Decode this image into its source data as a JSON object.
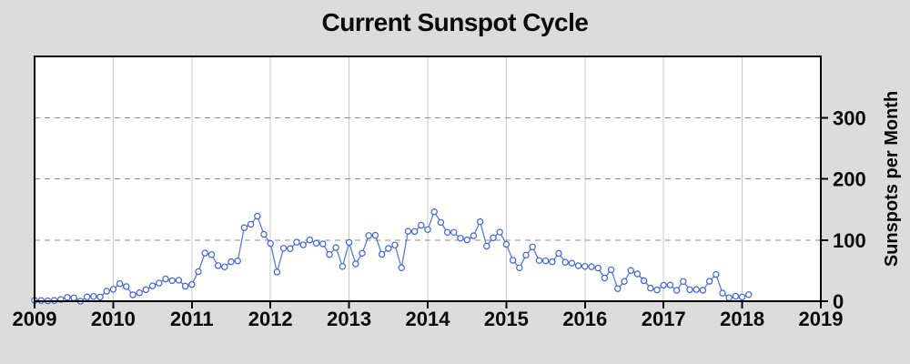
{
  "colors": {
    "background": "#dcdcdc",
    "plot_bg": "#ffffff",
    "frame": "#000000",
    "line": "#5b79d8",
    "marker_stroke": "#3f63cc",
    "marker_fill": "#ffffff",
    "year_grid": "#c8c8c8",
    "h_grid": "#8a8a8a",
    "text": "#0a0a0a"
  },
  "chart_data": {
    "type": "line",
    "title": "Current Sunspot Cycle",
    "xlabel": "",
    "ylabel": "Sunspots per Month",
    "xlim": [
      2009,
      2019
    ],
    "ylim": [
      0,
      400
    ],
    "x_ticks": [
      2009,
      2010,
      2011,
      2012,
      2013,
      2014,
      2015,
      2016,
      2017,
      2018,
      2019
    ],
    "y_ticks": [
      0,
      100,
      200,
      300
    ],
    "grid": {
      "vertical_year_lines": true,
      "horizontal_dashed_lines": [
        100,
        200,
        300
      ]
    },
    "legend": "none",
    "marker": "open-circle",
    "series": [
      {
        "name": "monthly_sunspot_number",
        "start_year": 2009,
        "start_month": 1,
        "step_months": 1,
        "values": [
          1.3,
          1.2,
          0.6,
          1.2,
          2.9,
          6.3,
          5.5,
          0.0,
          7.1,
          7.7,
          6.9,
          16.3,
          19.5,
          28.7,
          24.0,
          10.4,
          13.9,
          18.8,
          25.2,
          29.6,
          36.4,
          33.6,
          34.4,
          24.5,
          27.3,
          48.3,
          78.6,
          76.1,
          58.2,
          56.1,
          64.5,
          65.8,
          120.1,
          125.7,
          139.1,
          109.3,
          94.4,
          47.8,
          86.6,
          85.9,
          96.5,
          92.0,
          100.1,
          94.8,
          93.7,
          76.5,
          87.6,
          56.8,
          96.1,
          60.9,
          78.3,
          107.3,
          107.6,
          76.7,
          86.2,
          91.8,
          54.5,
          114.4,
          113.9,
          124.2,
          117.0,
          146.1,
          128.7,
          112.5,
          112.5,
          102.9,
          100.2,
          106.9,
          130.0,
          90.0,
          103.6,
          112.9,
          93.0,
          66.9,
          54.5,
          75.3,
          88.8,
          66.5,
          65.8,
          64.4,
          78.1,
          63.6,
          62.2,
          58.0,
          57.0,
          56.4,
          54.1,
          37.9,
          51.5,
          20.5,
          32.4,
          50.2,
          44.6,
          33.4,
          21.4,
          18.5,
          26.1,
          26.4,
          17.7,
          32.3,
          18.9,
          19.2,
          17.8,
          32.6,
          43.7,
          13.2,
          5.7,
          8.2,
          6.8,
          10.7
        ]
      }
    ]
  }
}
